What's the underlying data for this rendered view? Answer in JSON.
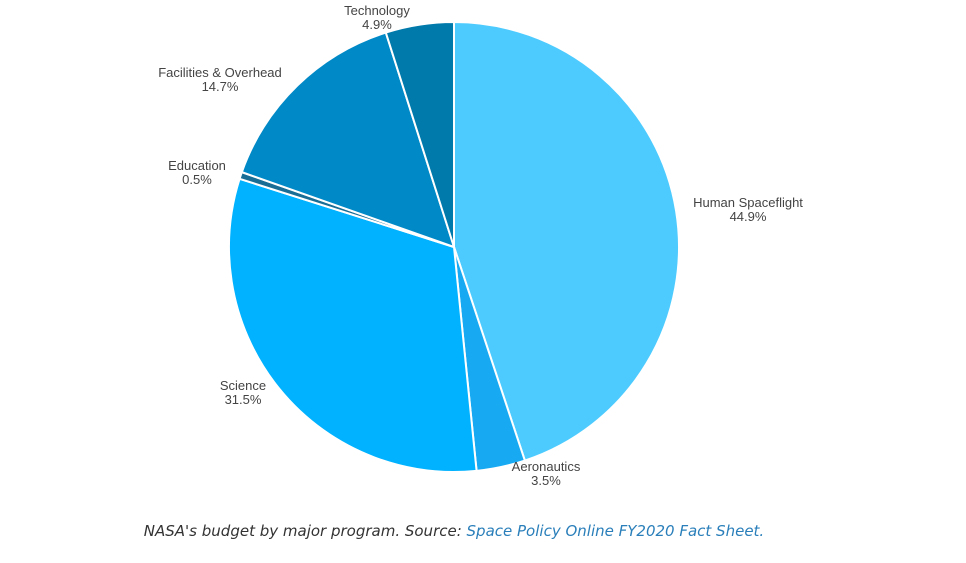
{
  "chart_data": {
    "type": "pie",
    "title": "",
    "start_angle_deg": 0,
    "direction": "clockwise",
    "legend": "none",
    "slices": [
      {
        "label": "Human Spaceflight",
        "value": 44.9,
        "value_label": "44.9%",
        "color": "#4dcbff"
      },
      {
        "label": "Aeronautics",
        "value": 3.5,
        "value_label": "3.5%",
        "color": "#17aaf2"
      },
      {
        "label": "Science",
        "value": 31.5,
        "value_label": "31.5%",
        "color": "#00b2ff"
      },
      {
        "label": "Education",
        "value": 0.5,
        "value_label": "0.5%",
        "color": "#1a6e96"
      },
      {
        "label": "Facilities & Overhead",
        "value": 14.7,
        "value_label": "14.7%",
        "color": "#0089c7"
      },
      {
        "label": "Technology",
        "value": 4.9,
        "value_label": "4.9%",
        "color": "#0079ab"
      }
    ]
  },
  "caption": {
    "prefix": "NASA's budget by major program. Source: ",
    "link_text": "Space Policy Online FY2020 Fact Sheet."
  }
}
